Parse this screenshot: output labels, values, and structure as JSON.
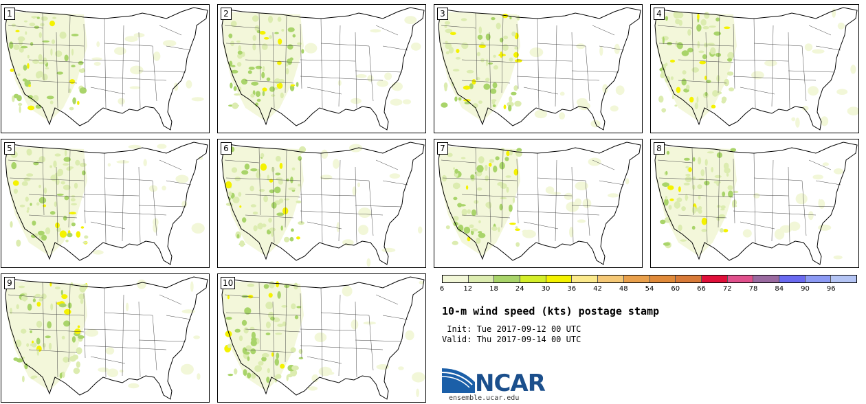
{
  "panels": [
    {
      "label": "1"
    },
    {
      "label": "2"
    },
    {
      "label": "3"
    },
    {
      "label": "4"
    },
    {
      "label": "5"
    },
    {
      "label": "6"
    },
    {
      "label": "7"
    },
    {
      "label": "8"
    },
    {
      "label": "9"
    },
    {
      "label": "10"
    }
  ],
  "colorbar": {
    "ticks": [
      "6",
      "12",
      "18",
      "24",
      "30",
      "36",
      "42",
      "48",
      "54",
      "60",
      "66",
      "72",
      "78",
      "84",
      "90",
      "96"
    ],
    "colors": [
      "#f2f7d8",
      "#dcecb0",
      "#a9d46a",
      "#d4ee2a",
      "#f4f200",
      "#fbe98c",
      "#f5c876",
      "#e9a04c",
      "#e08a3a",
      "#d87a38",
      "#e0103a",
      "#e0508c",
      "#9a6aa0",
      "#6a6af0",
      "#8c9af4",
      "#b4c4f4"
    ]
  },
  "title": "10-m wind speed (kts) postage stamp",
  "init_line": " Init: Tue 2017-09-12 00 UTC",
  "valid_line": "Valid: Thu 2017-09-14 00 UTC",
  "logo": {
    "text": "NCAR",
    "url": "ensemble.ucar.edu",
    "color": "#1b4f8c"
  }
}
